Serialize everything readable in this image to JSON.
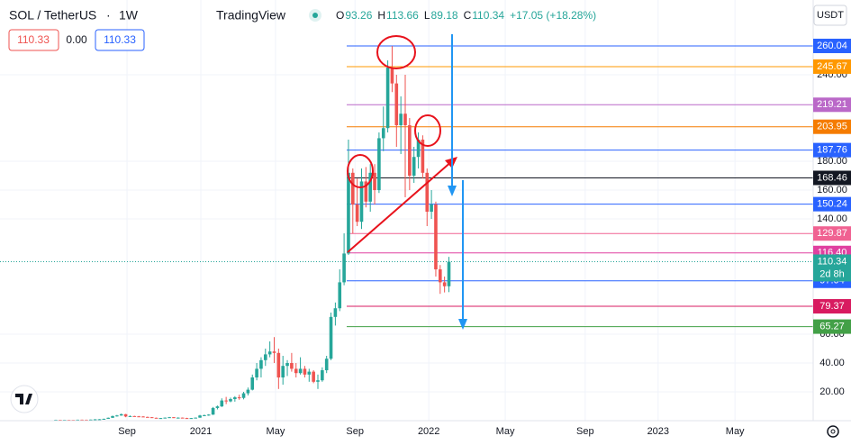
{
  "header": {
    "symbol": "SOL / TetherUS",
    "interval": "1W",
    "brand": "TradingView",
    "ohlc": [
      {
        "letter": "O",
        "value": 93.26
      },
      {
        "letter": "H",
        "value": 113.66
      },
      {
        "letter": "L",
        "value": 89.18
      },
      {
        "letter": "C",
        "value": 110.34
      }
    ],
    "change": "+17.05 (+18.28%)",
    "sell": "110.33",
    "spread": "0.00",
    "buy": "110.33",
    "currency": "USDT"
  },
  "chart_data": {
    "type": "candlestick",
    "open": [
      0.6,
      0.62,
      0.58,
      0.6,
      0.57,
      0.55,
      0.68,
      0.65,
      0.62,
      0.75,
      0.95,
      1.0,
      1.3,
      2.0,
      3.2,
      3.6,
      4.5,
      2.9,
      3.2,
      3.0,
      2.9,
      2.6,
      2.4,
      2.0,
      1.7,
      1.8,
      2.1,
      2.4,
      2.0,
      2.1,
      1.8,
      1.6,
      1.8,
      2.1,
      3.6,
      3.8,
      4.2,
      8.8,
      9.9,
      14,
      13.4,
      15,
      16.2,
      15.8,
      19,
      21.5,
      30,
      36,
      42,
      46,
      48,
      47,
      30,
      38,
      40,
      36,
      33,
      36,
      32,
      34,
      27,
      28,
      35,
      43,
      72,
      78,
      96,
      116,
      172,
      150,
      138,
      166,
      152,
      172,
      160,
      196,
      203,
      245,
      234,
      205,
      213,
      205,
      170,
      183,
      195,
      172,
      145,
      150,
      105,
      96,
      93.26
    ],
    "high": [
      0.7,
      0.66,
      0.65,
      0.64,
      0.62,
      0.7,
      0.75,
      0.72,
      0.8,
      1.05,
      1.1,
      1.4,
      2.2,
      3.5,
      4.0,
      4.9,
      4.7,
      3.6,
      3.4,
      3.3,
      3.1,
      2.8,
      2.5,
      2.1,
      1.9,
      2.2,
      2.6,
      2.5,
      2.3,
      2.2,
      2.0,
      1.9,
      2.2,
      4.0,
      4.2,
      4.5,
      9.5,
      10.5,
      15.5,
      16.5,
      16,
      17,
      18,
      20,
      23,
      32,
      40,
      44,
      50,
      55,
      58,
      50,
      45,
      42,
      47,
      40,
      44,
      38,
      36,
      35,
      32,
      37,
      45,
      75,
      82,
      105,
      130,
      195,
      175,
      168,
      175,
      176,
      178,
      178,
      200,
      218,
      250,
      260,
      240,
      225,
      240,
      210,
      190,
      200,
      198,
      175,
      160,
      152,
      108,
      100,
      113.66
    ],
    "low": [
      0.52,
      0.55,
      0.54,
      0.55,
      0.5,
      0.53,
      0.6,
      0.58,
      0.6,
      0.72,
      0.85,
      0.95,
      1.25,
      1.9,
      2.8,
      3.4,
      2.4,
      2.6,
      2.9,
      2.7,
      2.5,
      2.3,
      1.9,
      1.6,
      1.6,
      1.7,
      2.0,
      1.8,
      1.9,
      1.7,
      1.5,
      1.5,
      1.7,
      2.0,
      3.2,
      3.4,
      4.0,
      7.8,
      9.5,
      11.5,
      12.8,
      13.2,
      14.5,
      14.8,
      17.5,
      21,
      28,
      30,
      38,
      44,
      40,
      22,
      25,
      31,
      34,
      30,
      32,
      30,
      27,
      26,
      22,
      27,
      33,
      42,
      66,
      76,
      94,
      115,
      130,
      135,
      133,
      148,
      145,
      150,
      158,
      187,
      200,
      228,
      190,
      185,
      155,
      160,
      165,
      175,
      168,
      135,
      140,
      100,
      88,
      89,
      89.18
    ],
    "close": [
      0.62,
      0.58,
      0.6,
      0.57,
      0.55,
      0.68,
      0.65,
      0.62,
      0.75,
      0.95,
      1.0,
      1.3,
      2.0,
      3.2,
      3.6,
      4.5,
      2.9,
      3.2,
      3.0,
      2.9,
      2.6,
      2.4,
      2.0,
      1.7,
      1.8,
      2.1,
      2.4,
      2.0,
      2.1,
      1.8,
      1.6,
      1.8,
      2.1,
      3.6,
      3.8,
      4.2,
      8.8,
      9.9,
      14,
      13.4,
      15,
      16.2,
      15.8,
      19,
      21.5,
      30,
      36,
      42,
      46,
      48,
      47,
      30,
      38,
      40,
      36,
      33,
      36,
      32,
      34,
      27,
      28,
      35,
      43,
      72,
      78,
      96,
      116,
      172,
      150,
      138,
      166,
      152,
      172,
      160,
      196,
      203,
      245,
      234,
      205,
      213,
      205,
      170,
      183,
      195,
      172,
      145,
      150,
      105,
      96,
      93.29,
      110.34
    ],
    "up_color": "#26a69a",
    "down_color": "#ef5350",
    "xlim": [
      -12.78,
      173.4
    ],
    "xticks": [
      {
        "value": 16.3,
        "label": "Sep"
      },
      {
        "value": 33.2,
        "label": "2021"
      },
      {
        "value": 50.3,
        "label": "May"
      },
      {
        "value": 68.5,
        "label": "Sep"
      },
      {
        "value": 85.4,
        "label": "2022"
      },
      {
        "value": 102.9,
        "label": "May"
      },
      {
        "value": 121.2,
        "label": "Sep"
      },
      {
        "value": 137.9,
        "label": "2023"
      },
      {
        "value": 155.5,
        "label": "May"
      }
    ],
    "ylim": [
      0,
      291.9
    ],
    "yticks": [
      {
        "value": 20,
        "label": "20.00"
      },
      {
        "value": 40,
        "label": "40.00"
      },
      {
        "value": 60,
        "label": "60.00"
      },
      {
        "value": 140,
        "label": "140.00"
      },
      {
        "value": 160,
        "label": "160.00"
      },
      {
        "value": 180,
        "label": "180.00"
      },
      {
        "value": 240,
        "label": "240.00"
      }
    ],
    "grid": true,
    "levels": [
      {
        "value": 260.04,
        "color": "#2962ff"
      },
      {
        "value": 245.67,
        "color": "#ff9800"
      },
      {
        "value": 219.21,
        "color": "#ba68c8"
      },
      {
        "value": 203.95,
        "color": "#f57c00"
      },
      {
        "value": 187.76,
        "color": "#2962ff"
      },
      {
        "value": 168.46,
        "color": "#131722"
      },
      {
        "value": 150.24,
        "color": "#2962ff"
      },
      {
        "value": 129.87,
        "color": "#f06292"
      },
      {
        "value": 116.4,
        "label": "116.40",
        "color": "#e040a0"
      },
      {
        "value": 97.04,
        "color": "#2962ff"
      },
      {
        "value": 79.37,
        "color": "#d81b60"
      },
      {
        "value": 65.27,
        "color": "#43a047"
      }
    ],
    "current_price": {
      "value": 110.34,
      "countdown": "2d 8h",
      "color": "#26a69a"
    }
  }
}
